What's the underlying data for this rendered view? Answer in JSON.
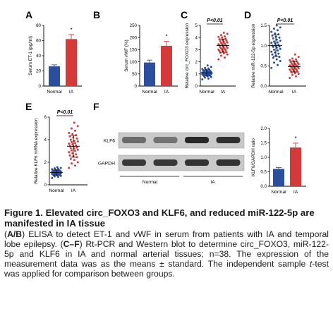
{
  "chart_data": [
    {
      "panel": "A",
      "type": "bar",
      "categories": [
        "Normal",
        "IA"
      ],
      "values": [
        26,
        62
      ],
      "errors": [
        2,
        6
      ],
      "colors": [
        "#2b4f9e",
        "#d43a3a"
      ],
      "ylabel": "Serum ET-1 (pg/ml)",
      "ylim": [
        0,
        80
      ],
      "yticks": [
        "0",
        "20",
        "40",
        "60",
        "80"
      ],
      "annotation": "*"
    },
    {
      "panel": "B",
      "type": "bar",
      "categories": [
        "Normal",
        "IA"
      ],
      "values": [
        97,
        166
      ],
      "errors": [
        10,
        18
      ],
      "colors": [
        "#2b4f9e",
        "#d43a3a"
      ],
      "ylabel": "Serum vWF (%)",
      "ylim": [
        0,
        250
      ],
      "yticks": [
        "0",
        "50",
        "100",
        "150",
        "200",
        "250"
      ],
      "annotation": "*"
    },
    {
      "panel": "C",
      "type": "scatter",
      "categories": [
        "Normal",
        "IA"
      ],
      "series": [
        {
          "values": [
            0.55,
            0.62,
            0.7,
            0.75,
            0.8,
            0.82,
            0.85,
            0.88,
            0.9,
            0.92,
            0.95,
            0.97,
            0.98,
            1.0,
            1.0,
            1.02,
            1.03,
            1.05,
            1.06,
            1.08,
            1.1,
            1.1,
            1.12,
            1.14,
            1.15,
            1.17,
            1.2,
            1.22,
            1.24,
            1.26,
            1.3,
            1.32,
            1.35,
            1.4,
            1.45,
            1.5,
            1.58,
            1.7
          ]
        },
        {
          "values": [
            2.2,
            2.35,
            2.5,
            2.6,
            2.7,
            2.75,
            2.8,
            2.85,
            2.9,
            2.95,
            3.0,
            3.0,
            3.05,
            3.1,
            3.15,
            3.2,
            3.2,
            3.25,
            3.3,
            3.35,
            3.4,
            3.4,
            3.45,
            3.5,
            3.55,
            3.6,
            3.65,
            3.7,
            3.75,
            3.8,
            3.85,
            3.9,
            4.0,
            4.05,
            4.1,
            4.2,
            4.3,
            4.4
          ]
        }
      ],
      "colors": [
        "#2b4f9e",
        "#d43a3a"
      ],
      "ylabel": "Relative circ_FOXO3 expression",
      "ylim": [
        0,
        5
      ],
      "yticks": [
        "0",
        "1",
        "2",
        "3",
        "4",
        "5"
      ],
      "annotation": "P<0.01"
    },
    {
      "panel": "D",
      "type": "scatter",
      "categories": [
        "Normal",
        "IA"
      ],
      "series": [
        {
          "values": [
            0.45,
            0.52,
            0.58,
            0.62,
            0.66,
            0.7,
            0.72,
            0.75,
            0.78,
            0.8,
            0.83,
            0.85,
            0.88,
            0.9,
            0.92,
            0.95,
            0.97,
            0.98,
            1.0,
            1.0,
            1.02,
            1.05,
            1.07,
            1.08,
            1.1,
            1.12,
            1.15,
            1.18,
            1.2,
            1.22,
            1.25,
            1.28,
            1.3,
            1.34,
            1.38,
            1.42,
            1.45,
            1.5
          ]
        },
        {
          "values": [
            0.2,
            0.24,
            0.28,
            0.3,
            0.32,
            0.34,
            0.35,
            0.36,
            0.38,
            0.39,
            0.4,
            0.41,
            0.42,
            0.43,
            0.44,
            0.45,
            0.46,
            0.47,
            0.48,
            0.49,
            0.5,
            0.5,
            0.51,
            0.52,
            0.53,
            0.54,
            0.55,
            0.56,
            0.57,
            0.58,
            0.6,
            0.61,
            0.62,
            0.64,
            0.66,
            0.68,
            0.72,
            0.78
          ]
        }
      ],
      "colors": [
        "#2b4f9e",
        "#d43a3a"
      ],
      "ylabel": "Relative miR-122-5p expression",
      "ylim": [
        0,
        1.5
      ],
      "yticks": [
        "0.0",
        "0.5",
        "1.0",
        "1.5"
      ],
      "annotation": "P<0.01"
    },
    {
      "panel": "E",
      "type": "scatter",
      "categories": [
        "Normal",
        "IA"
      ],
      "series": [
        {
          "values": [
            0.6,
            0.7,
            0.75,
            0.8,
            0.82,
            0.85,
            0.88,
            0.9,
            0.92,
            0.95,
            0.96,
            0.98,
            1.0,
            1.0,
            1.02,
            1.04,
            1.05,
            1.06,
            1.08,
            1.1,
            1.1,
            1.12,
            1.14,
            1.15,
            1.16,
            1.18,
            1.2,
            1.22,
            1.24,
            1.26,
            1.28,
            1.3,
            1.34,
            1.38,
            1.42,
            1.46,
            1.5,
            1.56
          ]
        },
        {
          "values": [
            1.5,
            1.7,
            1.9,
            2.0,
            2.2,
            2.3,
            2.45,
            2.55,
            2.6,
            2.7,
            2.8,
            2.9,
            3.0,
            3.05,
            3.1,
            3.2,
            3.25,
            3.3,
            3.4,
            3.45,
            3.5,
            3.6,
            3.65,
            3.7,
            3.8,
            3.85,
            3.9,
            4.0,
            4.1,
            4.2,
            4.3,
            4.4,
            4.5,
            4.6,
            4.8,
            5.0,
            5.2,
            5.5
          ]
        }
      ],
      "colors": [
        "#2b4f9e",
        "#d43a3a"
      ],
      "ylabel": "Relative KLF6 mRNA expression",
      "ylim": [
        0,
        6
      ],
      "yticks": [
        "0",
        "2",
        "4",
        "6"
      ],
      "annotation": "P<0.01"
    },
    {
      "panel": "F",
      "type": "bar",
      "categories": [
        "Normal",
        "IA"
      ],
      "values": [
        0.6,
        1.34
      ],
      "errors": [
        0.05,
        0.15
      ],
      "colors": [
        "#2b4f9e",
        "#d43a3a"
      ],
      "ylabel": "KLF6/GAPDH ratio",
      "ylim": [
        0,
        2.0
      ],
      "yticks": [
        "0.0",
        "0.5",
        "1.0",
        "1.5",
        "2.0"
      ],
      "annotation": "*"
    }
  ],
  "panel_labels": [
    "A",
    "B",
    "C",
    "D",
    "E",
    "F"
  ],
  "blot": {
    "rows": [
      "KLF6",
      "GAPDH"
    ],
    "groups": [
      "Normal",
      "IA"
    ],
    "bands": {
      "KLF6": [
        0.55,
        0.5,
        0.95,
        0.9
      ],
      "GAPDH": [
        0.85,
        0.85,
        0.88,
        0.88
      ]
    }
  },
  "caption": {
    "title": "Figure 1. Elevated circ_FOXO3 and KLF6, and reduced miR-122-5p are manifested in IA tissue",
    "body_html": "(<b>A/B</b>) ELISA to detect ET-1 and vWF in serum from patients with IA and temporal lobe epilepsy. (<b>C–F</b>) Rt-PCR and Western blot to determine circ_FOXO3, miR-122-5p and KLF6 in IA and normal arterial tissues; n=38. The expression of the measurement data was as the means ± standard. The independent sample <i>t</i>-test was applied for comparison between groups."
  }
}
